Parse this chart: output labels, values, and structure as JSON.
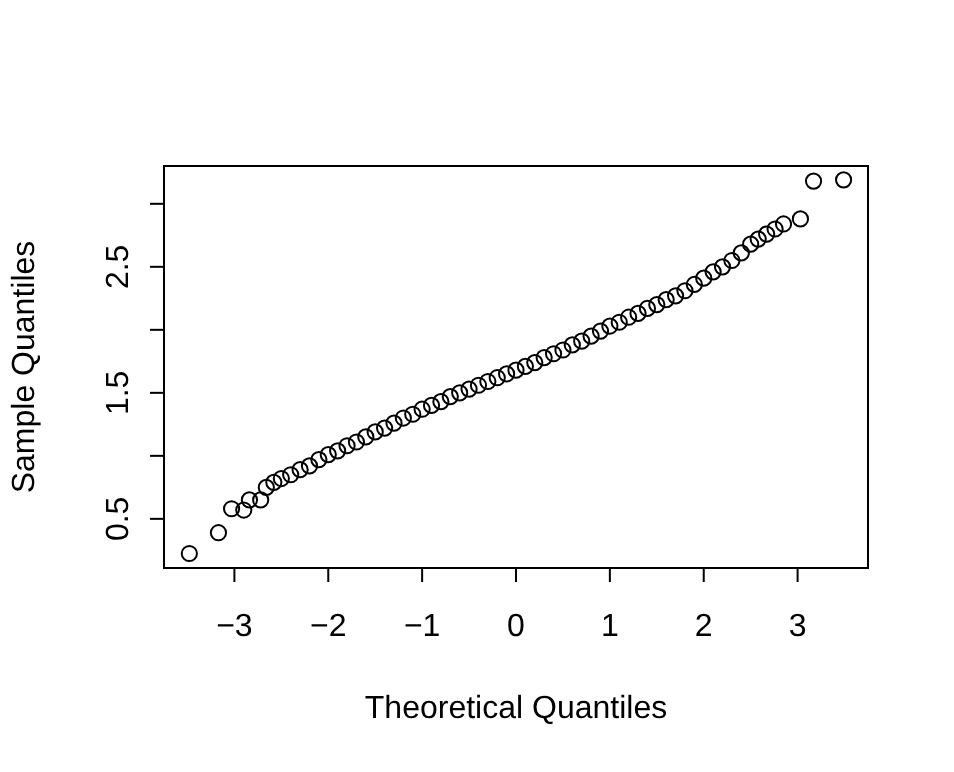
{
  "chart_data": {
    "type": "scatter",
    "xlabel": "Theoretical Quantiles",
    "ylabel": "Sample Quantiles",
    "xlim": [
      -3.75,
      3.75
    ],
    "ylim": [
      0.11,
      3.3
    ],
    "xticks": [
      {
        "value": -3,
        "label": "−3"
      },
      {
        "value": -2,
        "label": "−2"
      },
      {
        "value": -1,
        "label": "−1"
      },
      0,
      1,
      2,
      3
    ],
    "yticks": [
      0.5,
      {
        "value": 1,
        "label": null
      },
      1.5,
      {
        "value": 2,
        "label": null
      },
      2.5,
      {
        "value": 3,
        "label": null
      }
    ],
    "grid": false,
    "marker": "circle",
    "series": [
      {
        "color": "#000000",
        "x": [
          -3.48,
          -3.17,
          -3.03,
          -2.9,
          -2.84,
          -2.72,
          -2.66,
          -2.58,
          -2.5,
          -2.4,
          -2.3,
          -2.2,
          -2.1,
          -2.0,
          -1.9,
          -1.8,
          -1.7,
          -1.6,
          -1.5,
          -1.4,
          -1.3,
          -1.2,
          -1.1,
          -1.0,
          -0.9,
          -0.8,
          -0.7,
          -0.6,
          -0.5,
          -0.4,
          -0.3,
          -0.2,
          -0.1,
          0,
          0.1,
          0.2,
          0.3,
          0.4,
          0.5,
          0.6,
          0.7,
          0.8,
          0.9,
          1.0,
          1.1,
          1.2,
          1.3,
          1.4,
          1.5,
          1.6,
          1.7,
          1.8,
          1.9,
          2.0,
          2.1,
          2.2,
          2.3,
          2.4,
          2.5,
          2.58,
          2.67,
          2.76,
          2.85,
          3.03,
          3.17,
          3.49
        ],
        "values": [
          0.225,
          0.39,
          0.58,
          0.57,
          0.65,
          0.65,
          0.75,
          0.79,
          0.82,
          0.85,
          0.89,
          0.92,
          0.97,
          1.01,
          1.04,
          1.08,
          1.11,
          1.15,
          1.19,
          1.22,
          1.26,
          1.3,
          1.33,
          1.37,
          1.4,
          1.43,
          1.47,
          1.5,
          1.53,
          1.56,
          1.59,
          1.62,
          1.65,
          1.68,
          1.71,
          1.74,
          1.78,
          1.81,
          1.84,
          1.88,
          1.91,
          1.95,
          1.99,
          2.03,
          2.06,
          2.1,
          2.13,
          2.17,
          2.2,
          2.24,
          2.27,
          2.31,
          2.36,
          2.41,
          2.46,
          2.5,
          2.55,
          2.61,
          2.68,
          2.72,
          2.76,
          2.8,
          2.84,
          2.88,
          3.18,
          3.19
        ]
      }
    ]
  }
}
